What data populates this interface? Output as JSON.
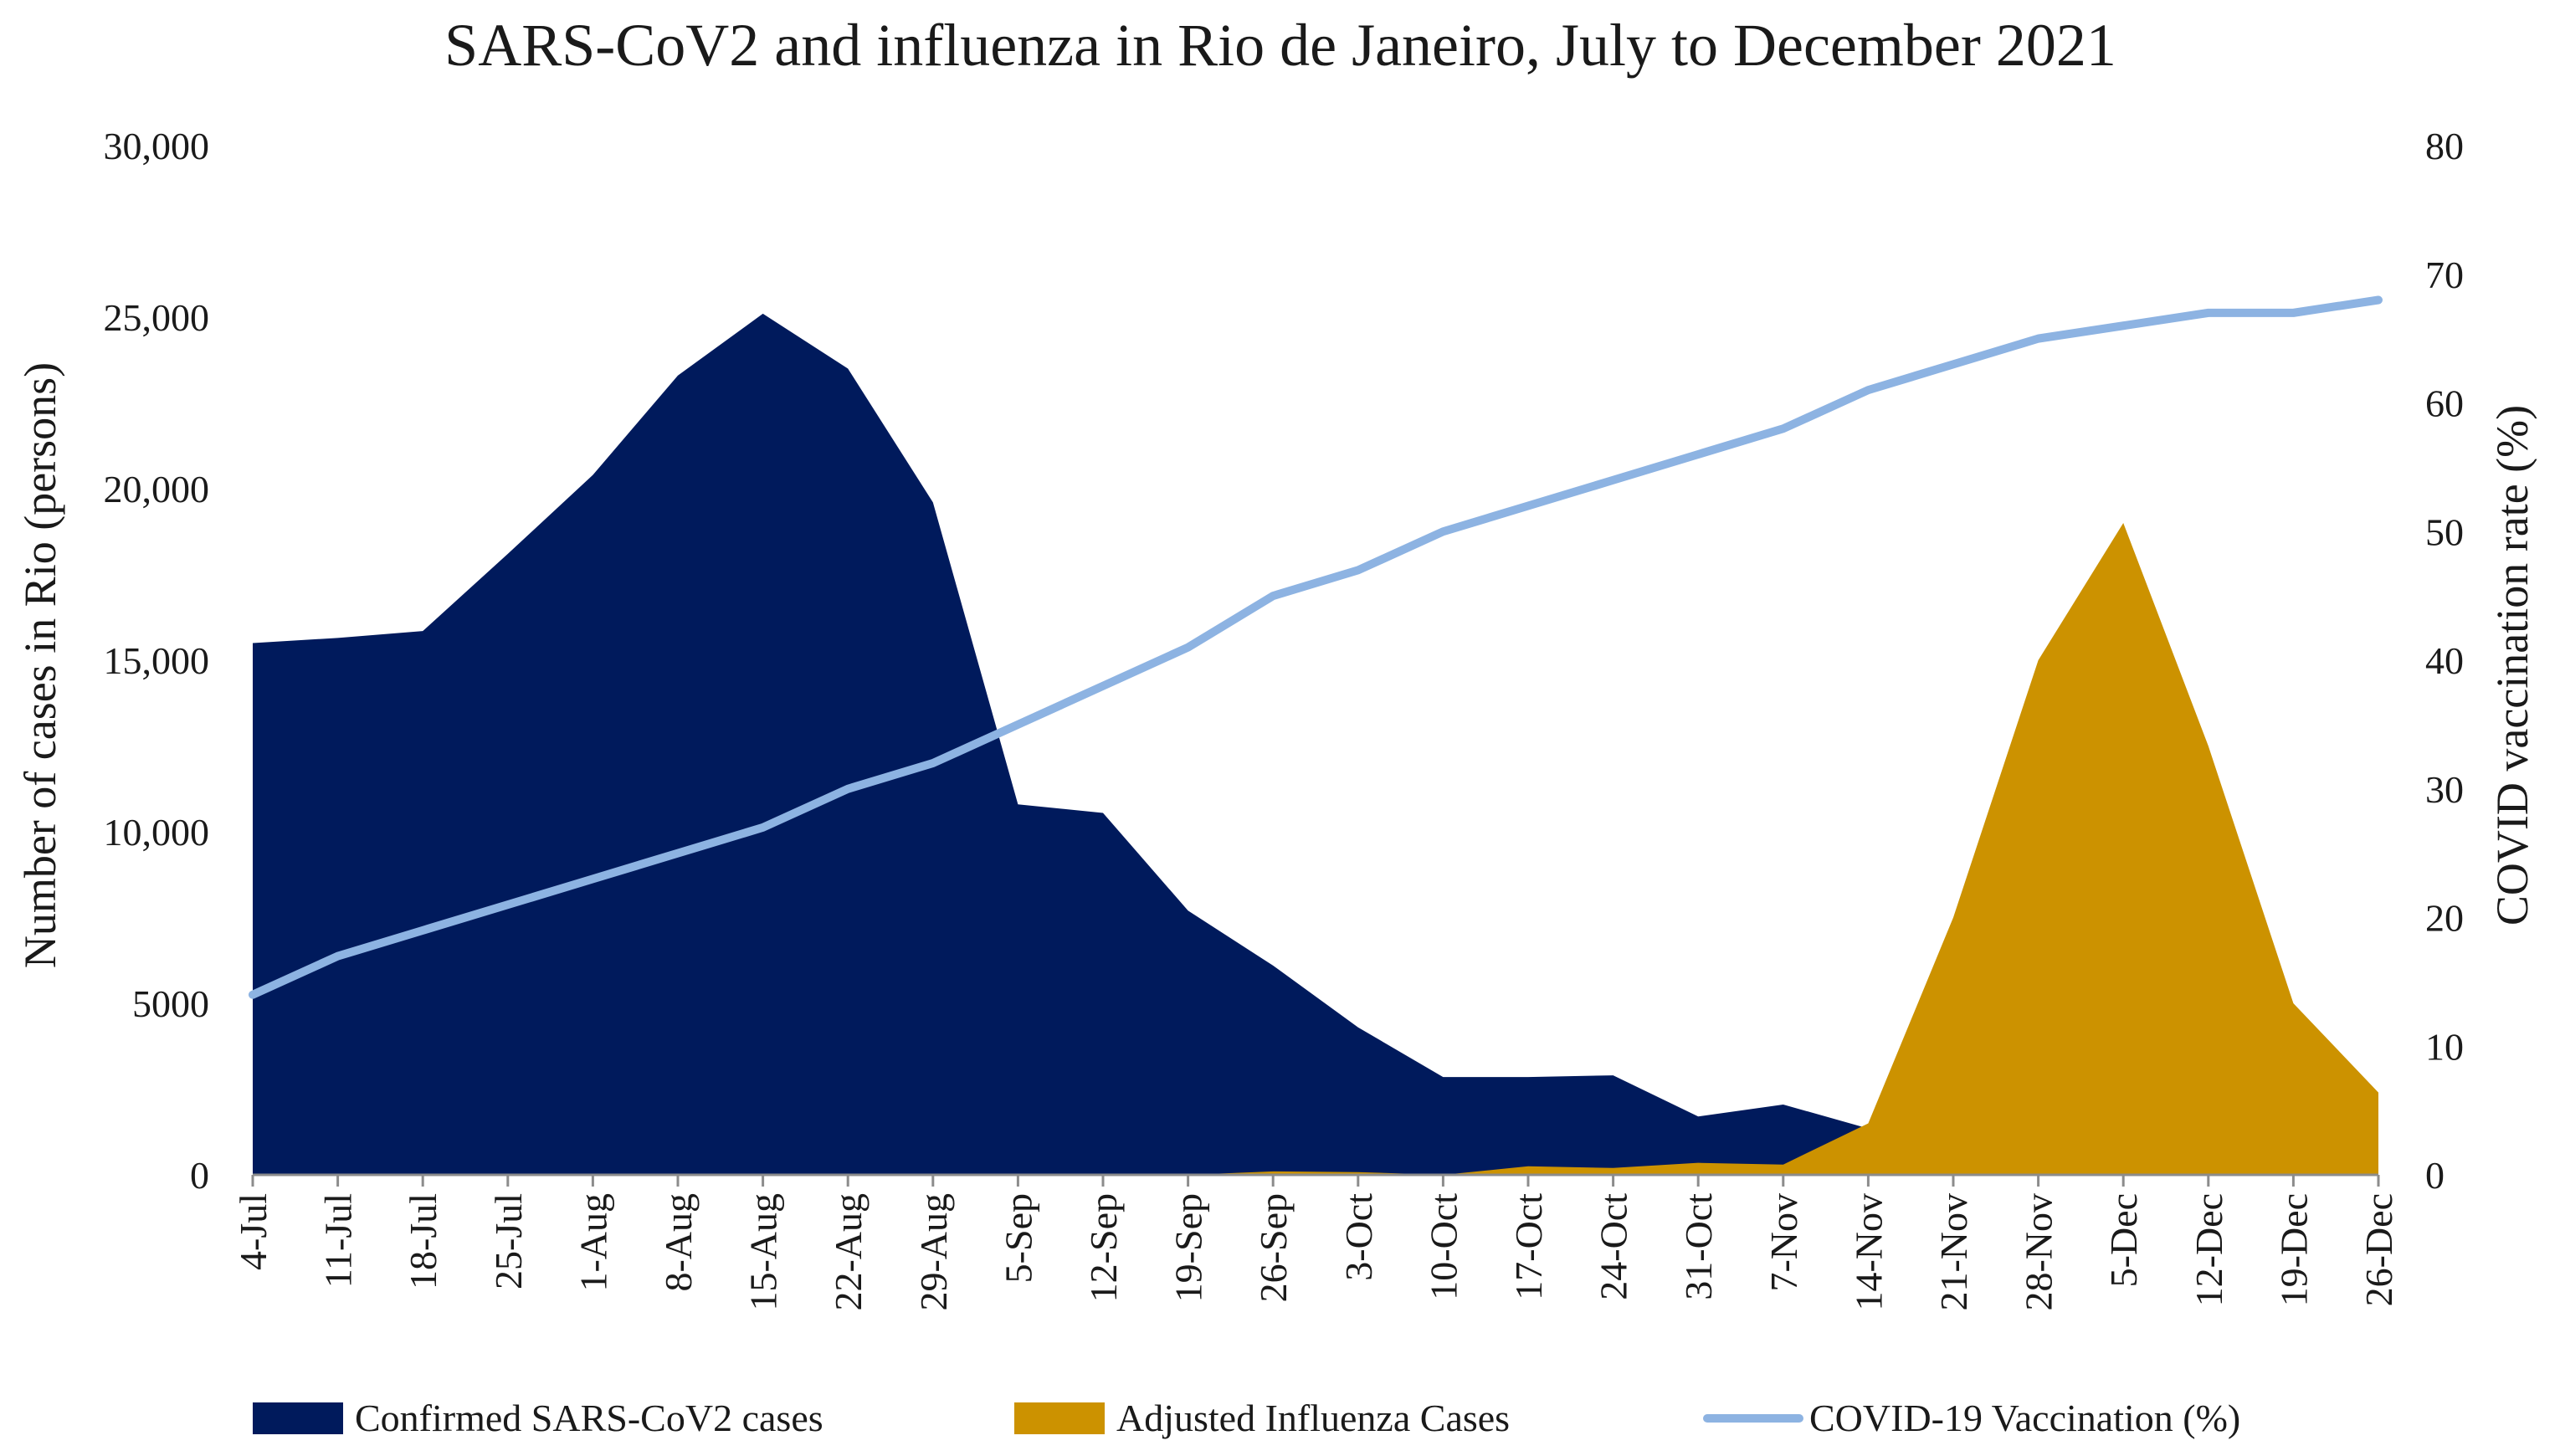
{
  "chart_data": {
    "type": "area",
    "title": "SARS-CoV2 and influenza in Rio de Janeiro, July to December 2021",
    "xlabel": "",
    "ylabel": "Number of cases in Rio (persons)",
    "y2label": "COVID vaccination rate (%)",
    "categories": [
      "4-Jul",
      "11-Jul",
      "18-Jul",
      "25-Jul",
      "1-Aug",
      "8-Aug",
      "15-Aug",
      "22-Aug",
      "29-Aug",
      "5-Sep",
      "12-Sep",
      "19-Sep",
      "26-Sep",
      "3-Oct",
      "10-Oct",
      "17-Oct",
      "24-Oct",
      "31-Oct",
      "7-Nov",
      "14-Nov",
      "21-Nov",
      "28-Nov",
      "5-Dec",
      "12-Dec",
      "19-Dec",
      "26-Dec"
    ],
    "ylim": [
      0,
      30000
    ],
    "y2lim": [
      0,
      80
    ],
    "yticks": [
      0,
      5000,
      10000,
      15000,
      20000,
      25000,
      30000
    ],
    "ytick_labels": [
      "0",
      "5000",
      "10,000",
      "15,000",
      "20,000",
      "25,000",
      "30,000"
    ],
    "y2ticks": [
      0,
      10,
      20,
      30,
      40,
      50,
      60,
      70,
      80
    ],
    "y2tick_labels": [
      "0",
      "10",
      "20",
      "30",
      "40",
      "50",
      "60",
      "70",
      "80"
    ],
    "legend_position": "bottom",
    "grid": false,
    "series": [
      {
        "name": "Confirmed SARS-CoV2 cases",
        "type": "area",
        "axis": "left",
        "color": "#001a5c",
        "values": [
          15500,
          15650,
          15850,
          18100,
          20400,
          23300,
          25100,
          23500,
          19600,
          10800,
          10550,
          7700,
          6100,
          4300,
          2850,
          2850,
          2900,
          1700,
          2050,
          1350,
          0,
          0,
          0,
          0,
          0,
          0
        ]
      },
      {
        "name": "Adjusted Influenza Cases",
        "type": "area",
        "axis": "left",
        "color": "#cc9200",
        "values": [
          0,
          0,
          0,
          0,
          0,
          0,
          0,
          0,
          0,
          0,
          0,
          0,
          100,
          80,
          0,
          250,
          200,
          350,
          300,
          1500,
          7500,
          15000,
          19000,
          12500,
          5000,
          2400
        ]
      },
      {
        "name": "COVID-19 Vaccination (%)",
        "type": "line",
        "axis": "right",
        "color": "#8db3e2",
        "values": [
          14,
          17,
          19,
          21,
          23,
          25,
          27,
          30,
          32,
          35,
          38,
          41,
          45,
          47,
          50,
          52,
          54,
          56,
          58,
          61,
          63,
          65,
          66,
          67,
          67,
          68
        ]
      }
    ]
  }
}
